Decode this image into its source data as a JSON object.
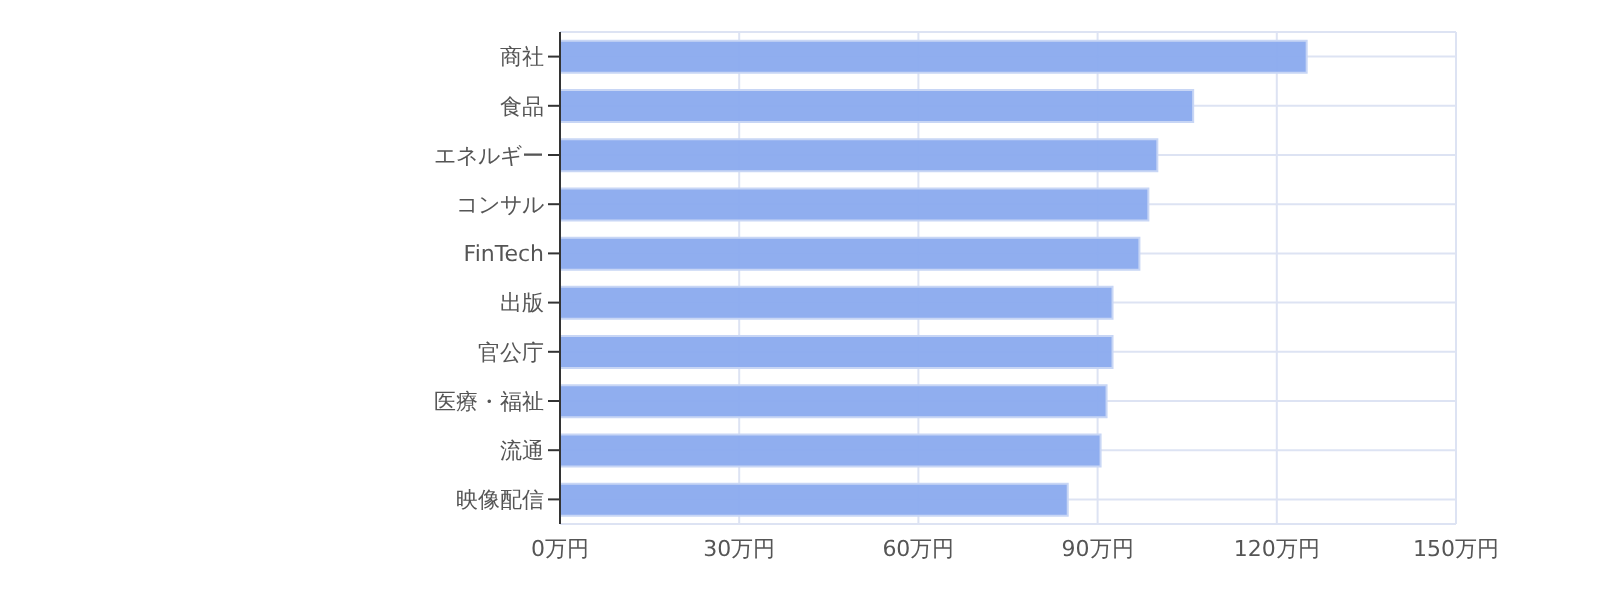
{
  "chart_data": {
    "type": "bar",
    "orientation": "horizontal",
    "categories": [
      "商社",
      "食品",
      "エネルギー",
      "コンサル",
      "FinTech",
      "出版",
      "官公庁",
      "医療・福祉",
      "流通",
      "映像配信"
    ],
    "values": [
      125,
      106,
      100,
      98.5,
      97,
      92.5,
      92.5,
      91.5,
      90.5,
      85
    ],
    "color": "#8aaaee",
    "xlim": [
      0,
      150
    ],
    "xticks": [
      {
        "value": 0,
        "label": "0万円"
      },
      {
        "value": 30,
        "label": "30万円"
      },
      {
        "value": 60,
        "label": "60万円"
      },
      {
        "value": 90,
        "label": "90万円"
      },
      {
        "value": 120,
        "label": "120万円"
      },
      {
        "value": 150,
        "label": "150万円"
      }
    ],
    "grid": true
  }
}
